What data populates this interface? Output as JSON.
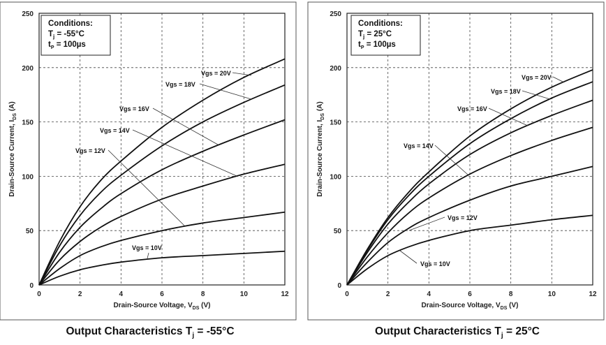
{
  "chart_data": [
    {
      "type": "line",
      "title": "Output Characteristics T",
      "title_sub": "j",
      "title_tail": " = -55°C",
      "xlabel": "Drain-Source Voltage, V",
      "xlabel_sub": "DS",
      "xlabel_tail": " (V)",
      "ylabel": "Drain-Source Current, I",
      "ylabel_sub": "DS",
      "ylabel_tail": " (A)",
      "xlim": [
        0,
        12
      ],
      "ylim": [
        0,
        250
      ],
      "xticks": [
        "0",
        "2",
        "4",
        "6",
        "8",
        "10",
        "12"
      ],
      "yticks": [
        "0",
        "50",
        "100",
        "150",
        "200",
        "250"
      ],
      "grid": true,
      "conditions": {
        "heading": "Conditions:",
        "tj": "T",
        "tj_sub": "j",
        "tj_val": " = -55°C",
        "tp": "t",
        "tp_sub": "P",
        "tp_val": " = 100µs"
      },
      "x": [
        0,
        1,
        2,
        3,
        4,
        6,
        8,
        10,
        12
      ],
      "series": [
        {
          "name": "Vgs = 20V",
          "values": [
            0,
            40,
            72,
            96,
            114,
            145,
            170,
            191,
            208
          ]
        },
        {
          "name": "Vgs = 18V",
          "values": [
            0,
            36,
            64,
            85,
            101,
            128,
            150,
            168,
            184
          ]
        },
        {
          "name": "Vgs = 16V",
          "values": [
            0,
            30,
            53,
            70,
            84,
            106,
            123,
            138,
            152
          ]
        },
        {
          "name": "Vgs = 14V",
          "values": [
            0,
            23,
            40,
            53,
            63,
            79,
            91,
            102,
            111
          ]
        },
        {
          "name": "Vgs = 12V",
          "values": [
            0,
            15,
            27,
            35,
            41,
            50,
            57,
            62,
            67
          ]
        },
        {
          "name": "Vgs = 10V",
          "values": [
            0,
            8,
            14,
            18,
            21,
            25,
            27,
            29,
            31
          ]
        }
      ]
    },
    {
      "type": "line",
      "title": "Output Characteristics T",
      "title_sub": "j",
      "title_tail": " = 25°C",
      "xlabel": "Drain-Source Voltage, V",
      "xlabel_sub": "DS",
      "xlabel_tail": " (V)",
      "ylabel": "Drain-Source Current, I",
      "ylabel_sub": "DS",
      "ylabel_tail": " (A)",
      "xlim": [
        0,
        12
      ],
      "ylim": [
        0,
        250
      ],
      "xticks": [
        "0",
        "2",
        "4",
        "6",
        "8",
        "10",
        "12"
      ],
      "yticks": [
        "0",
        "50",
        "100",
        "150",
        "200",
        "250"
      ],
      "grid": true,
      "conditions": {
        "heading": "Conditions:",
        "tj": "T",
        "tj_sub": "j",
        "tj_val": " = 25°C",
        "tp": "t",
        "tp_sub": "P",
        "tp_val": " = 100µs"
      },
      "x": [
        0,
        1,
        2,
        3,
        4,
        6,
        8,
        10,
        12
      ],
      "series": [
        {
          "name": "Vgs = 20V",
          "values": [
            0,
            33,
            62,
            85,
            104,
            137,
            162,
            182,
            198
          ]
        },
        {
          "name": "Vgs = 18V",
          "values": [
            0,
            32,
            60,
            82,
            100,
            130,
            153,
            172,
            187
          ]
        },
        {
          "name": "Vgs = 16V",
          "values": [
            0,
            30,
            56,
            76,
            93,
            120,
            140,
            156,
            170
          ]
        },
        {
          "name": "Vgs = 14V",
          "values": [
            0,
            26,
            48,
            66,
            80,
            102,
            119,
            133,
            145
          ]
        },
        {
          "name": "Vgs = 12V",
          "values": [
            0,
            21,
            39,
            52,
            62,
            78,
            91,
            100,
            109
          ]
        },
        {
          "name": "Vgs = 10V",
          "values": [
            0,
            15,
            27,
            35,
            41,
            50,
            55,
            60,
            64
          ]
        }
      ]
    }
  ]
}
